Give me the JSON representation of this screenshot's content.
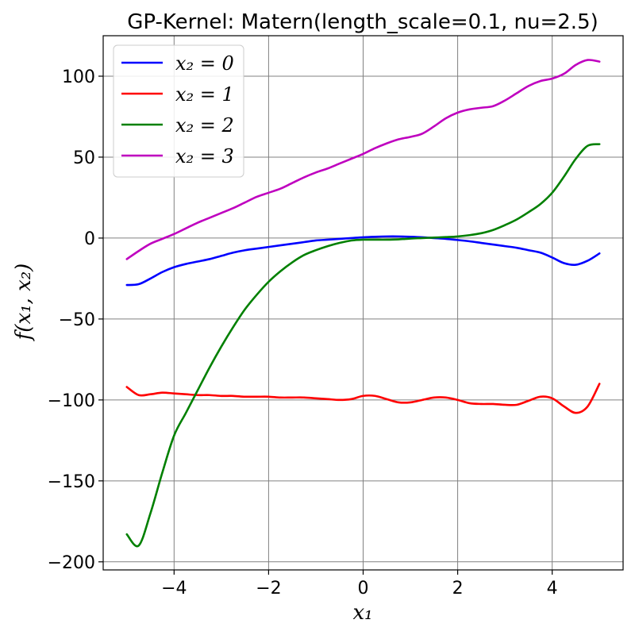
{
  "chart_data": {
    "type": "line",
    "title": "GP-Kernel: Matern(length_scale=0.1, nu=2.5)",
    "xlabel": "x₁",
    "ylabel": "f(x₁, x₂)",
    "xlim": [
      -5.5,
      5.5
    ],
    "ylim": [
      -205,
      125
    ],
    "xticks": [
      -4,
      -2,
      0,
      2,
      4
    ],
    "xtick_labels": [
      "−4",
      "−2",
      "0",
      "2",
      "4"
    ],
    "yticks": [
      100,
      50,
      0,
      -50,
      -100,
      -150,
      -200
    ],
    "ytick_labels": [
      "100",
      "50",
      "0",
      "−50",
      "−100",
      "−150",
      "−200"
    ],
    "grid": true,
    "legend_position": "top-left",
    "x": [
      -5.0,
      -4.75,
      -4.5,
      -4.25,
      -4.0,
      -3.75,
      -3.5,
      -3.25,
      -3.0,
      -2.75,
      -2.5,
      -2.25,
      -2.0,
      -1.75,
      -1.5,
      -1.25,
      -1.0,
      -0.75,
      -0.5,
      -0.25,
      0.0,
      0.25,
      0.5,
      0.75,
      1.0,
      1.25,
      1.5,
      1.75,
      2.0,
      2.25,
      2.5,
      2.75,
      3.0,
      3.25,
      3.5,
      3.75,
      4.0,
      4.25,
      4.5,
      4.75,
      5.0
    ],
    "series": [
      {
        "name": "x₂ = 0",
        "color": "#0000ff",
        "values": [
          -29,
          -28.5,
          -25,
          -21,
          -18,
          -16,
          -14.5,
          -13,
          -11,
          -9,
          -7.5,
          -6.5,
          -5.5,
          -4.5,
          -3.5,
          -2.5,
          -1.5,
          -1,
          -0.5,
          0,
          0.5,
          0.8,
          1,
          1,
          0.8,
          0.5,
          0,
          -0.5,
          -1.2,
          -2,
          -3,
          -4,
          -5,
          -6,
          -7.5,
          -9,
          -12,
          -15.5,
          -16.5,
          -14,
          -9.5
        ]
      },
      {
        "name": "x₂ = 1",
        "color": "#ff0000",
        "values": [
          -92,
          -97,
          -96.5,
          -95.5,
          -96,
          -96.5,
          -97,
          -97,
          -97.5,
          -97.5,
          -98,
          -98,
          -98,
          -98.5,
          -98.5,
          -98.5,
          -99,
          -99.5,
          -100,
          -99.5,
          -97.5,
          -97.5,
          -99.5,
          -101.5,
          -101.5,
          -100,
          -98.5,
          -98.5,
          -100,
          -102,
          -102.5,
          -102.5,
          -103,
          -103,
          -100.5,
          -98,
          -99,
          -104,
          -108,
          -104,
          -90
        ]
      },
      {
        "name": "x₂ = 2",
        "color": "#008000",
        "values": [
          -183,
          -190,
          -170,
          -145,
          -122,
          -108,
          -94,
          -80,
          -67,
          -55,
          -44,
          -35,
          -27,
          -20.5,
          -15,
          -10.5,
          -7.5,
          -5,
          -3,
          -1.5,
          -1,
          -1,
          -1,
          -0.8,
          -0.3,
          0,
          0.3,
          0.6,
          1,
          1.8,
          3,
          5,
          8,
          11.5,
          16,
          21,
          28,
          38,
          49,
          57,
          58
        ]
      },
      {
        "name": "x₂ = 3",
        "color": "#bf00bf",
        "values": [
          -13,
          -8,
          -3.5,
          -0.5,
          2.5,
          6,
          9.5,
          12.5,
          15.5,
          18.5,
          22,
          25.5,
          28,
          30.5,
          34,
          37.5,
          40.5,
          43,
          46,
          49,
          52,
          55.5,
          58.5,
          61,
          62.5,
          64.5,
          69,
          74,
          77.5,
          79.5,
          80.5,
          81.5,
          85,
          89.5,
          94,
          97,
          98.5,
          101.5,
          107,
          110,
          109
        ]
      }
    ]
  }
}
